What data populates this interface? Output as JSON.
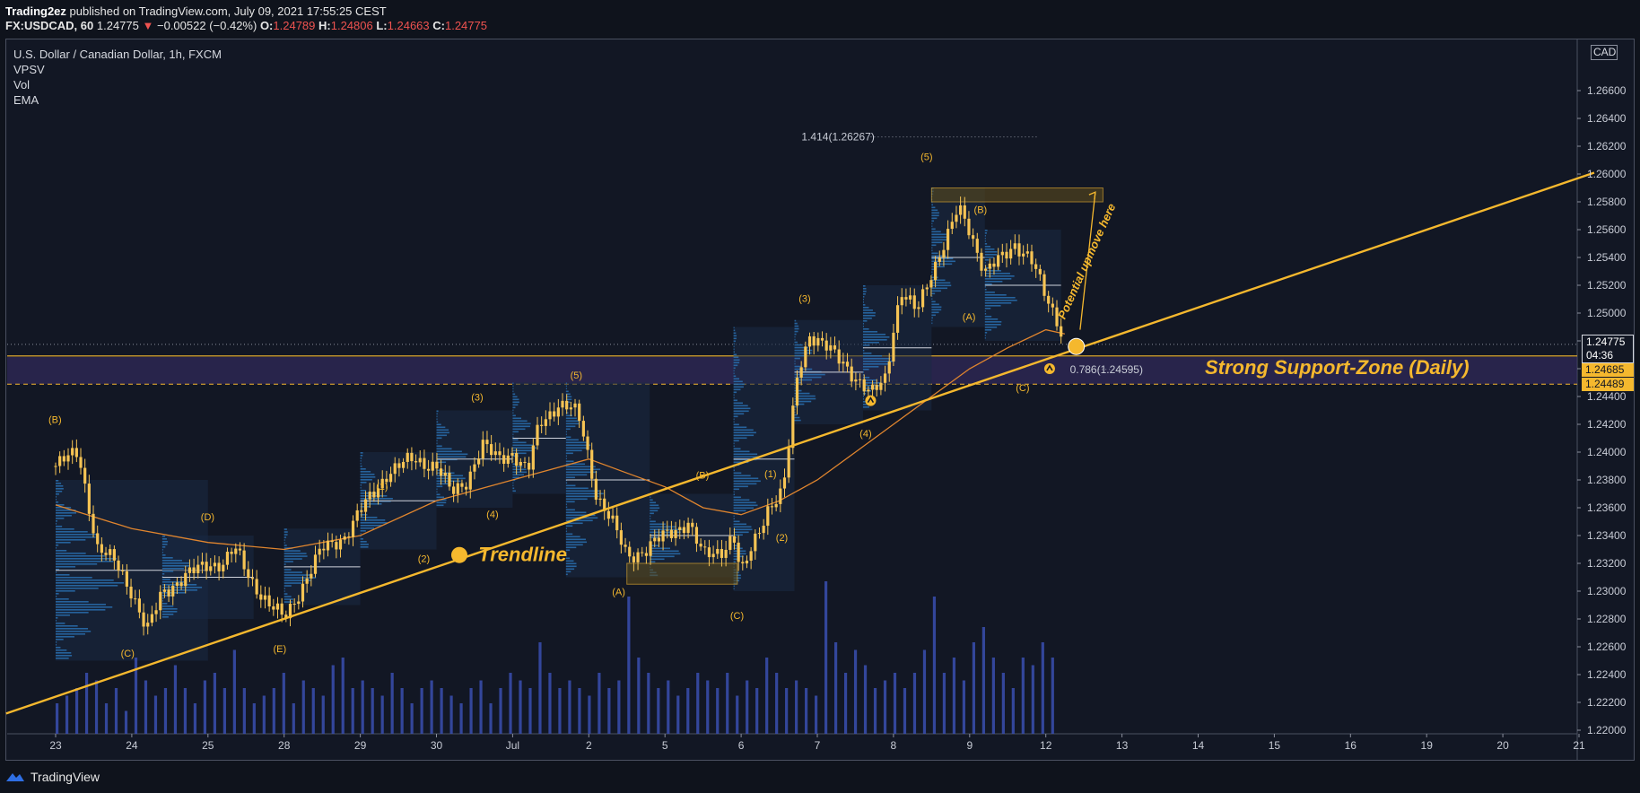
{
  "header": {
    "author": "Trading2ez",
    "published_text": "published on TradingView.com, July 09, 2021 17:55:25 CEST",
    "symbol": "FX:USDCAD, 60",
    "last": "1.24775",
    "change": "−0.00522 (−0.42%)",
    "o_label": "O:",
    "o_value": "1.24789",
    "h_label": "H:",
    "h_value": "1.24806",
    "l_label": "L:",
    "l_value": "1.24663",
    "c_label": "C:",
    "c_value": "1.24775"
  },
  "legend": {
    "title": "U.S. Dollar / Canadian Dollar, 1h, FXCM",
    "indicators": [
      "VPSV",
      "Vol",
      "EMA"
    ]
  },
  "price_scale": {
    "currency": "CAD",
    "current_price": "1.24775",
    "countdown": "04:36",
    "zone_top": "1.24685",
    "zone_bottom": "1.24489"
  },
  "footer": {
    "brand": "TradingView"
  },
  "colors": {
    "background": "#121724",
    "candle": "#f6c454",
    "annotation": "#f5b82e",
    "ema": "#e0852e",
    "volume": "#3a4fb0",
    "profile": "#2a74b8",
    "zone": "#3a2f6b",
    "price_label": "#f5b82e"
  },
  "chart_data": {
    "type": "candlestick",
    "title": "U.S. Dollar / Canadian Dollar, 1h, FXCM",
    "x_tick_labels": [
      "23",
      "24",
      "25",
      "28",
      "29",
      "30",
      "Jul",
      "2",
      "5",
      "6",
      "7",
      "8",
      "9",
      "12",
      "13",
      "14",
      "15",
      "16",
      "19",
      "20",
      "21"
    ],
    "y_tick_labels": [
      "1.26600",
      "1.26400",
      "1.26200",
      "1.26000",
      "1.25800",
      "1.25600",
      "1.25400",
      "1.25200",
      "1.25000",
      "1.24800",
      "1.24600",
      "1.24400",
      "1.24200",
      "1.24000",
      "1.23800",
      "1.23600",
      "1.23400",
      "1.23200",
      "1.23000",
      "1.22800",
      "1.22600",
      "1.22400",
      "1.22200",
      "1.22000"
    ],
    "ylim": [
      1.2192,
      1.2682
    ],
    "price_path": [
      [
        0,
        1.239
      ],
      [
        0.3,
        1.24
      ],
      [
        0.55,
        1.233
      ],
      [
        0.8,
        1.232
      ],
      [
        1.0,
        1.23
      ],
      [
        1.2,
        1.227
      ],
      [
        1.4,
        1.23
      ],
      [
        1.7,
        1.231
      ],
      [
        2.0,
        1.232
      ],
      [
        2.2,
        1.232
      ],
      [
        2.35,
        1.233
      ],
      [
        2.55,
        1.231
      ],
      [
        2.8,
        1.229
      ],
      [
        3.0,
        1.228
      ],
      [
        3.2,
        1.23
      ],
      [
        3.5,
        1.233
      ],
      [
        3.8,
        1.234
      ],
      [
        4.1,
        1.2365
      ],
      [
        4.35,
        1.2385
      ],
      [
        4.7,
        1.2395
      ],
      [
        5.0,
        1.239
      ],
      [
        5.2,
        1.237
      ],
      [
        5.4,
        1.238
      ],
      [
        5.6,
        1.2405
      ],
      [
        5.8,
        1.2395
      ],
      [
        6.0,
        1.24
      ],
      [
        6.2,
        1.2385
      ],
      [
        6.35,
        1.242
      ],
      [
        6.6,
        1.2435
      ],
      [
        6.8,
        1.243
      ],
      [
        6.9,
        1.242
      ],
      [
        7.1,
        1.237
      ],
      [
        7.3,
        1.235
      ],
      [
        7.5,
        1.2325
      ],
      [
        7.75,
        1.233
      ],
      [
        8.0,
        1.234
      ],
      [
        8.3,
        1.235
      ],
      [
        8.5,
        1.2325
      ],
      [
        8.75,
        1.233
      ],
      [
        8.9,
        1.234
      ],
      [
        9.0,
        1.231
      ],
      [
        9.2,
        1.234
      ],
      [
        9.35,
        1.236
      ],
      [
        9.55,
        1.237
      ],
      [
        9.75,
        1.246
      ],
      [
        9.9,
        1.2485
      ],
      [
        10.1,
        1.2475
      ],
      [
        10.35,
        1.2465
      ],
      [
        10.55,
        1.245
      ],
      [
        10.7,
        1.244
      ],
      [
        10.9,
        1.2455
      ],
      [
        11.0,
        1.249
      ],
      [
        11.1,
        1.2515
      ],
      [
        11.3,
        1.25
      ],
      [
        11.5,
        1.253
      ],
      [
        11.75,
        1.256
      ],
      [
        11.85,
        1.2575
      ],
      [
        12.0,
        1.256
      ],
      [
        12.2,
        1.253
      ],
      [
        12.45,
        1.254
      ],
      [
        12.6,
        1.255
      ],
      [
        12.8,
        1.254
      ],
      [
        13.0,
        1.251
      ],
      [
        13.15,
        1.2495
      ],
      [
        13.25,
        1.248
      ]
    ],
    "ema_path": [
      [
        0,
        1.2362
      ],
      [
        1.0,
        1.2345
      ],
      [
        2.0,
        1.2335
      ],
      [
        3.0,
        1.233
      ],
      [
        4.0,
        1.234
      ],
      [
        5.0,
        1.2365
      ],
      [
        6.0,
        1.238
      ],
      [
        7.0,
        1.2395
      ],
      [
        7.5,
        1.2385
      ],
      [
        8.0,
        1.2375
      ],
      [
        8.5,
        1.236
      ],
      [
        9.0,
        1.2355
      ],
      [
        9.5,
        1.2365
      ],
      [
        10.0,
        1.238
      ],
      [
        10.5,
        1.24
      ],
      [
        11.0,
        1.242
      ],
      [
        11.5,
        1.244
      ],
      [
        12.0,
        1.246
      ],
      [
        12.5,
        1.2475
      ],
      [
        13.0,
        1.2488
      ],
      [
        13.25,
        1.2485
      ]
    ],
    "trendline": {
      "x": [
        -0.65,
        20.2
      ],
      "y": [
        1.2212,
        1.2601
      ]
    },
    "support_zone": {
      "label": "Strong Support-Zone (Daily)",
      "top": 1.24685,
      "bottom": 1.24489
    },
    "fibonacci": [
      {
        "label": "1.414(1.26267)",
        "price": 1.26267
      },
      {
        "label": "0.786(1.24595)",
        "price": 1.24595
      }
    ],
    "annotations": {
      "trendline_label": "Trendline",
      "upmove_label": "Potential upmove here",
      "waves": [
        {
          "t": "(B)",
          "x": 0.0,
          "y": 1.2421
        },
        {
          "t": "(C)",
          "x": 0.95,
          "y": 1.2253
        },
        {
          "t": "(D)",
          "x": 2.0,
          "y": 1.2351
        },
        {
          "t": "(E)",
          "x": 2.95,
          "y": 1.2256
        },
        {
          "t": "(1)",
          "x": 4.3,
          "y": 1.2373
        },
        {
          "t": "(2)",
          "x": 4.85,
          "y": 1.2321
        },
        {
          "t": "(3)",
          "x": 5.55,
          "y": 1.2437
        },
        {
          "t": "(4)",
          "x": 5.75,
          "y": 1.2353
        },
        {
          "t": "(5)",
          "x": 6.85,
          "y": 1.2453
        },
        {
          "t": "(A)",
          "x": 7.4,
          "y": 1.2297
        },
        {
          "t": "(B)",
          "x": 8.5,
          "y": 1.2381
        },
        {
          "t": "(C)",
          "x": 8.95,
          "y": 1.228
        },
        {
          "t": "(1)",
          "x": 9.4,
          "y": 1.2382
        },
        {
          "t": "(2)",
          "x": 9.55,
          "y": 1.2336
        },
        {
          "t": "(3)",
          "x": 9.85,
          "y": 1.2508
        },
        {
          "t": "(4)",
          "x": 10.65,
          "y": 1.2411
        },
        {
          "t": "(5)",
          "x": 11.45,
          "y": 1.261
        },
        {
          "t": "(B)",
          "x": 12.15,
          "y": 1.2572
        },
        {
          "t": "(A)",
          "x": 12.0,
          "y": 1.2495
        },
        {
          "t": "(C)",
          "x": 12.7,
          "y": 1.2444
        }
      ]
    },
    "volume": {
      "max": 1,
      "values": [
        0.2,
        0.25,
        0.3,
        0.4,
        0.35,
        0.2,
        0.3,
        0.15,
        0.5,
        0.35,
        0.25,
        0.3,
        0.45,
        0.3,
        0.2,
        0.35,
        0.4,
        0.3,
        0.55,
        0.3,
        0.2,
        0.25,
        0.3,
        0.4,
        0.2,
        0.35,
        0.3,
        0.25,
        0.45,
        0.5,
        0.3,
        0.35,
        0.3,
        0.25,
        0.4,
        0.3,
        0.2,
        0.3,
        0.35,
        0.3,
        0.25,
        0.2,
        0.3,
        0.35,
        0.2,
        0.3,
        0.4,
        0.35,
        0.3,
        0.6,
        0.4,
        0.3,
        0.35,
        0.3,
        0.25,
        0.4,
        0.3,
        0.35,
        0.9,
        0.5,
        0.4,
        0.3,
        0.35,
        0.25,
        0.3,
        0.4,
        0.35,
        0.3,
        0.4,
        0.25,
        0.35,
        0.3,
        0.5,
        0.4,
        0.3,
        0.35,
        0.3,
        0.25,
        1.0,
        0.6,
        0.4,
        0.55,
        0.45,
        0.3,
        0.35,
        0.4,
        0.3,
        0.4,
        0.55,
        0.9,
        0.4,
        0.5,
        0.35,
        0.6,
        0.7,
        0.5,
        0.4,
        0.3,
        0.5,
        0.45,
        0.6,
        0.5
      ]
    }
  }
}
